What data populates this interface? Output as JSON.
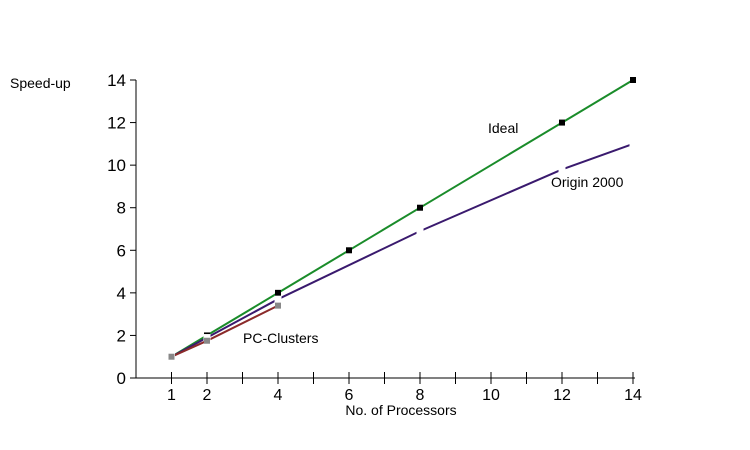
{
  "chart_data": {
    "type": "line",
    "title": "",
    "xlabel": "No. of Processors",
    "ylabel": "Speed-up",
    "xlim": [
      0,
      14
    ],
    "ylim": [
      0,
      14
    ],
    "x_tick_labels": [
      1,
      2,
      4,
      6,
      8,
      10,
      12,
      14
    ],
    "y_tick_labels": [
      0,
      2,
      4,
      6,
      8,
      10,
      12,
      14
    ],
    "grid": false,
    "legend": "inline labels",
    "series": [
      {
        "name": "Ideal",
        "color": "#1a8c2a",
        "points": [
          [
            1,
            1
          ],
          [
            2,
            2
          ],
          [
            4,
            4
          ],
          [
            6,
            6
          ],
          [
            8,
            8
          ],
          [
            12,
            12
          ],
          [
            14,
            14
          ]
        ]
      },
      {
        "name": "Origin 2000",
        "color": "#3a1a6e",
        "points": [
          [
            1,
            1
          ],
          [
            2,
            1.9
          ],
          [
            4,
            3.7
          ],
          [
            8,
            6.9
          ],
          [
            12,
            9.8
          ],
          [
            14,
            11
          ]
        ]
      },
      {
        "name": "PC-Clusters",
        "color": "#8b2a2a",
        "points": [
          [
            1,
            1
          ],
          [
            2,
            1.75
          ],
          [
            4,
            3.4
          ]
        ]
      }
    ]
  }
}
